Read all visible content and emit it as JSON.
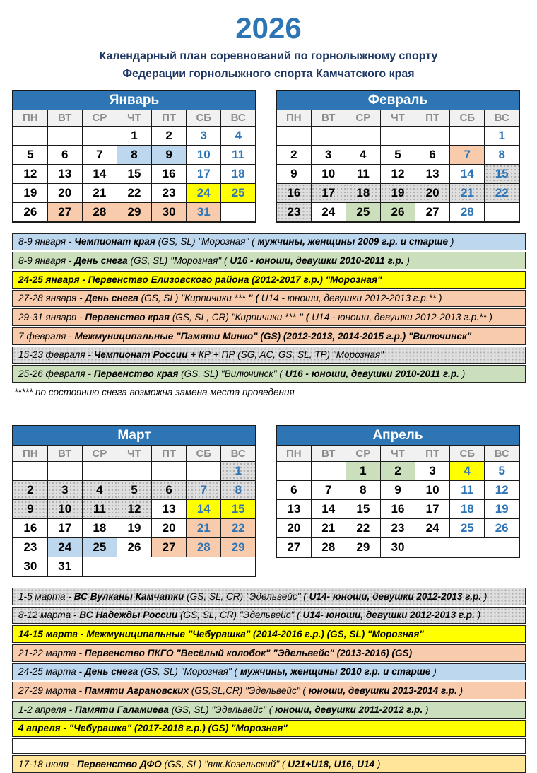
{
  "page": {
    "title": "2026",
    "subtitle1": "Календарный план соревнований по горнолыжному спорту",
    "subtitle2": "Федерации горнолыжного спорта Камчатского края",
    "footnote": "***** по состоянию снега возможна замена места проведения"
  },
  "colors": {
    "accent_blue": "#2E75B6",
    "subtitle_navy": "#1F3864",
    "lightblue": "#BDD7EE",
    "yellow": "#FFFF00",
    "orange": "#F7CBAC",
    "green": "#CBDFBD",
    "gray_pattern": "#DEDEDE",
    "tan": "#FFE599",
    "weekday_gray": "#8C8C8C"
  },
  "weekdays": [
    "ПН",
    "ВТ",
    "СР",
    "ЧТ",
    "ПТ",
    "СБ",
    "ВС"
  ],
  "months": [
    {
      "id": "january",
      "title": "Январь",
      "weeks": [
        [
          [
            "",
            null
          ],
          [
            "",
            null
          ],
          [
            "",
            null
          ],
          [
            1,
            null
          ],
          [
            2,
            null
          ],
          [
            3,
            null
          ],
          [
            4,
            null
          ]
        ],
        [
          [
            5,
            null
          ],
          [
            6,
            null
          ],
          [
            7,
            null
          ],
          [
            8,
            "bl"
          ],
          [
            9,
            "bl"
          ],
          [
            10,
            null
          ],
          [
            11,
            null
          ]
        ],
        [
          [
            12,
            null
          ],
          [
            13,
            null
          ],
          [
            14,
            null
          ],
          [
            15,
            null
          ],
          [
            16,
            null
          ],
          [
            17,
            null
          ],
          [
            18,
            null
          ]
        ],
        [
          [
            19,
            null
          ],
          [
            20,
            null
          ],
          [
            21,
            null
          ],
          [
            22,
            null
          ],
          [
            23,
            null
          ],
          [
            24,
            "ye"
          ],
          [
            25,
            "ye"
          ]
        ],
        [
          [
            26,
            null
          ],
          [
            27,
            "or"
          ],
          [
            28,
            "or"
          ],
          [
            29,
            "or"
          ],
          [
            30,
            "or"
          ],
          [
            31,
            "or"
          ]
        ]
      ]
    },
    {
      "id": "february",
      "title": "Февраль",
      "weeks": [
        [
          [
            "",
            null
          ],
          [
            "",
            null
          ],
          [
            "",
            null
          ],
          [
            "",
            null
          ],
          [
            "",
            null
          ],
          [
            "",
            null
          ],
          [
            1,
            null
          ]
        ],
        [
          [
            2,
            null
          ],
          [
            3,
            null
          ],
          [
            4,
            null
          ],
          [
            5,
            null
          ],
          [
            6,
            null
          ],
          [
            7,
            "or"
          ],
          [
            8,
            null
          ]
        ],
        [
          [
            9,
            null
          ],
          [
            10,
            null
          ],
          [
            11,
            null
          ],
          [
            12,
            null
          ],
          [
            13,
            null
          ],
          [
            14,
            null
          ],
          [
            15,
            "gy"
          ]
        ],
        [
          [
            16,
            "gy"
          ],
          [
            17,
            "gy"
          ],
          [
            18,
            "gy"
          ],
          [
            19,
            "gy"
          ],
          [
            20,
            "gy"
          ],
          [
            21,
            "gy"
          ],
          [
            22,
            "gy"
          ]
        ],
        [
          [
            23,
            "gy"
          ],
          [
            24,
            null
          ],
          [
            25,
            "gr"
          ],
          [
            26,
            "gr"
          ],
          [
            27,
            null
          ],
          [
            28,
            null
          ]
        ]
      ]
    },
    {
      "id": "march",
      "title": "Март",
      "weeks": [
        [
          [
            "",
            null
          ],
          [
            "",
            null
          ],
          [
            "",
            null
          ],
          [
            "",
            null
          ],
          [
            "",
            null
          ],
          [
            "",
            null
          ],
          [
            1,
            "gy"
          ]
        ],
        [
          [
            2,
            "gy"
          ],
          [
            3,
            "gy"
          ],
          [
            4,
            "gy"
          ],
          [
            5,
            "gy"
          ],
          [
            6,
            "gy"
          ],
          [
            7,
            "gy"
          ],
          [
            8,
            "gy"
          ]
        ],
        [
          [
            9,
            "gy"
          ],
          [
            10,
            "gy"
          ],
          [
            11,
            "gy"
          ],
          [
            12,
            "gy"
          ],
          [
            13,
            null
          ],
          [
            14,
            "ye"
          ],
          [
            15,
            "ye"
          ]
        ],
        [
          [
            16,
            null
          ],
          [
            17,
            null
          ],
          [
            18,
            null
          ],
          [
            19,
            null
          ],
          [
            20,
            null
          ],
          [
            21,
            "or"
          ],
          [
            22,
            "or"
          ]
        ],
        [
          [
            23,
            null
          ],
          [
            24,
            "bl"
          ],
          [
            25,
            "bl"
          ],
          [
            26,
            null
          ],
          [
            27,
            "or"
          ],
          [
            28,
            "or"
          ],
          [
            29,
            "or"
          ]
        ],
        [
          [
            30,
            null
          ],
          [
            31,
            null
          ]
        ]
      ]
    },
    {
      "id": "april",
      "title": "Апрель",
      "weeks": [
        [
          [
            "",
            null
          ],
          [
            "",
            null
          ],
          [
            1,
            "gr"
          ],
          [
            2,
            "gr"
          ],
          [
            3,
            null
          ],
          [
            4,
            "ye"
          ],
          [
            5,
            null
          ]
        ],
        [
          [
            6,
            null
          ],
          [
            7,
            null
          ],
          [
            8,
            null
          ],
          [
            9,
            null
          ],
          [
            10,
            null
          ],
          [
            11,
            null
          ],
          [
            12,
            null
          ]
        ],
        [
          [
            13,
            null
          ],
          [
            14,
            null
          ],
          [
            15,
            null
          ],
          [
            16,
            null
          ],
          [
            17,
            null
          ],
          [
            18,
            null
          ],
          [
            19,
            null
          ]
        ],
        [
          [
            20,
            null
          ],
          [
            21,
            null
          ],
          [
            22,
            null
          ],
          [
            23,
            null
          ],
          [
            24,
            null
          ],
          [
            25,
            null
          ],
          [
            26,
            null
          ]
        ],
        [
          [
            27,
            null
          ],
          [
            28,
            null
          ],
          [
            29,
            null
          ],
          [
            30,
            null
          ]
        ]
      ]
    }
  ],
  "events_top": [
    {
      "bg": "bl",
      "text": "8-9 января -  **Чемпионат края**  (GS, SL) \"Морозная\" ( **мужчины, женщины 2009 г.р. и старше** )"
    },
    {
      "bg": "gr",
      "text": "8-9 января -  **День снега**  (GS, SL) \"Морозная\" ( **U16 - юноши, девушки 2010-2011 г.р.** )"
    },
    {
      "bg": "ye",
      "text": "**24-25 января -  Первенство Елизовского района (2012-2017 г.р.) \"Морозная\"**"
    },
    {
      "bg": "or",
      "text": "27-28 января -  **День снега**  (GS, SL) \"Кирпичики ***** \" ( **U14 - юноши, девушки 2012-2013 г.р.** )"
    },
    {
      "bg": "or",
      "text": "29-31 января -  **Первенство края** (GS, SL, CR) \"Кирпичики ***** \" ( **U14 - юноши, девушки 2012-2013 г.р.** )"
    },
    {
      "bg": "or",
      "text": "7 февраля -  **Межмуниципальные  \"Памяти Минко\" (GS) (2012-2013, 2014-2015 г.р.) \"Вилючинск\"**"
    },
    {
      "bg": "gy",
      "text": "15-23 февраля -  **Чемпионат России**  + КР + ПР (SG, AC, GS, SL, TP) \"Морозная\""
    },
    {
      "bg": "gr",
      "text": "25-26 февраля - **Первенство края** (GS, SL) \"Вилючинск\" ( **U16 - юноши, девушки 2010-2011 г.р.** )"
    }
  ],
  "events_bottom": [
    {
      "bg": "gy",
      "text": "1-5 марта -  **ВС Вулканы Камчатки**  (GS, SL, CR) \"Эдельвейс\" ( **U14- юноши, девушки 2012-2013 г.р.** )"
    },
    {
      "bg": "gy",
      "text": "8-12 марта -  **ВС Надежды России**  (GS, SL, CR) \"Эдельвейс\" ( **U14- юноши, девушки 2012-2013 г.р.** )"
    },
    {
      "bg": "ye",
      "text": "**14-15 марта - Межмуниципальные \"Чебурашка\" (2014-2016 г.р.) (GS, SL) \"Морозная\"**"
    },
    {
      "bg": "or",
      "text": "21-22 марта -  **Первенство ПКГО \"Весёлый колобок\" \"Эдельвейс\" (2013-2016) (GS)**"
    },
    {
      "bg": "bl",
      "text": "24-25 марта -  **День снега**  (GS, SL) \"Морозная\" ( **мужчины, женщины 2010 г.р. и старше** )"
    },
    {
      "bg": "or",
      "text": "27-29 марта -  **Памяти Аграновских**  (GS,SL,CR) \"Эдельвейс\" ( **юноши, девушки 2013-2014 г.р.** )"
    },
    {
      "bg": "gr",
      "text": "1-2 апреля -  **Памяти Галамиева**  (GS, SL) \"Эдельвейс\" ( **юноши, девушки 2011-2012 г.р.** )"
    },
    {
      "bg": "ye",
      "text": "**4 апреля - \"Чебурашка\" (2017-2018 г.р.) (GS) \"Морозная\"**"
    },
    {
      "bg": "wh",
      "text": ""
    },
    {
      "bg": "tan",
      "text": "17-18 июля -  **Первенство ДФО** (GS, SL) \"влк.Козельский\" ( **U21+U18, U16, U14** )"
    }
  ]
}
